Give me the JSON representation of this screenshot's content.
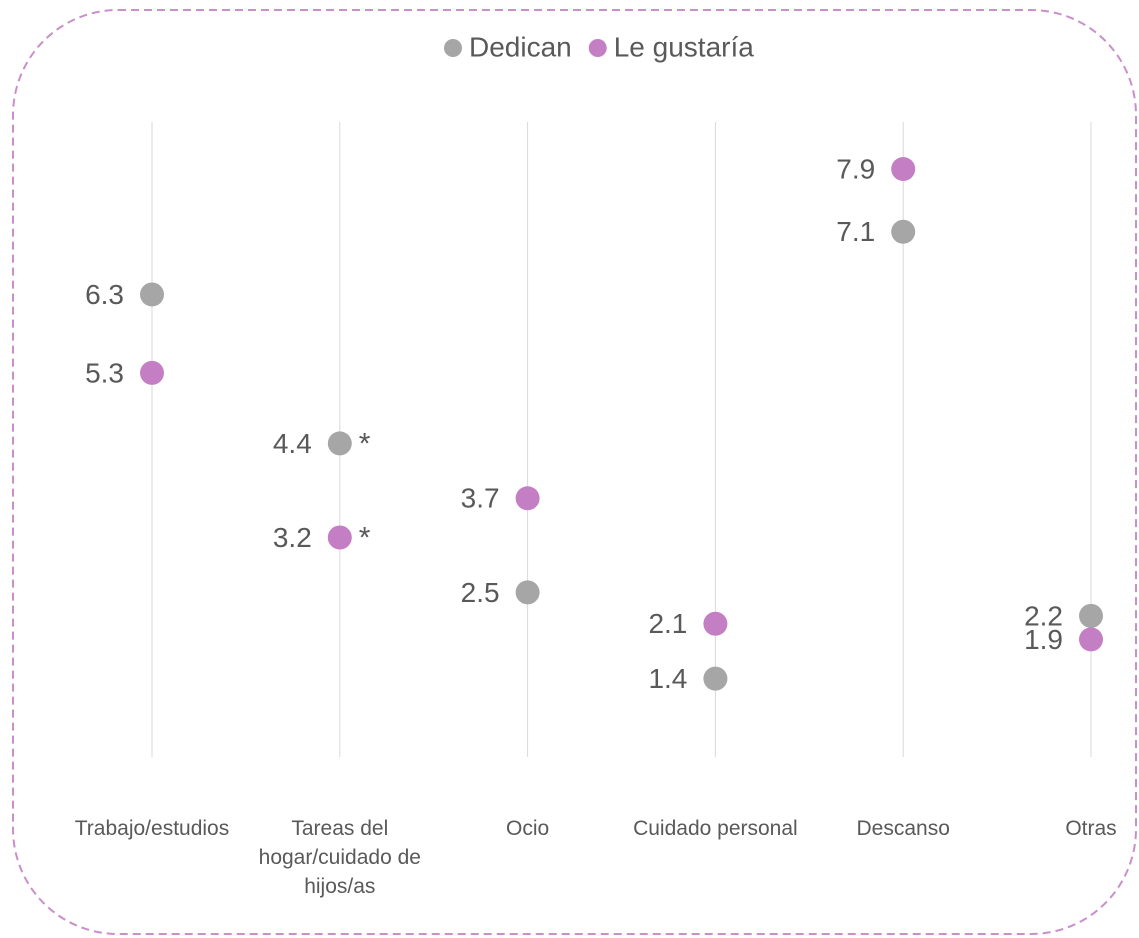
{
  "chart_data": {
    "type": "dot",
    "categories": [
      "Trabajo/estudios",
      "Tareas del hogar/cuidado de hijos/as",
      "Ocio",
      "Cuidado personal",
      "Descanso",
      "Otras"
    ],
    "series": [
      {
        "name": "Dedican",
        "color": "#a6a6a6",
        "values": [
          6.3,
          4.4,
          2.5,
          1.4,
          7.1,
          2.2
        ]
      },
      {
        "name": "Le gustaría",
        "color": "#c47ec4",
        "values": [
          5.3,
          3.2,
          3.7,
          2.1,
          7.9,
          1.9
        ]
      }
    ],
    "annotations": [
      {
        "text": "*",
        "series": 0,
        "category": 1
      },
      {
        "text": "*",
        "series": 1,
        "category": 1
      }
    ],
    "ylim": [
      0.4,
      8.5
    ],
    "legend": "top"
  }
}
